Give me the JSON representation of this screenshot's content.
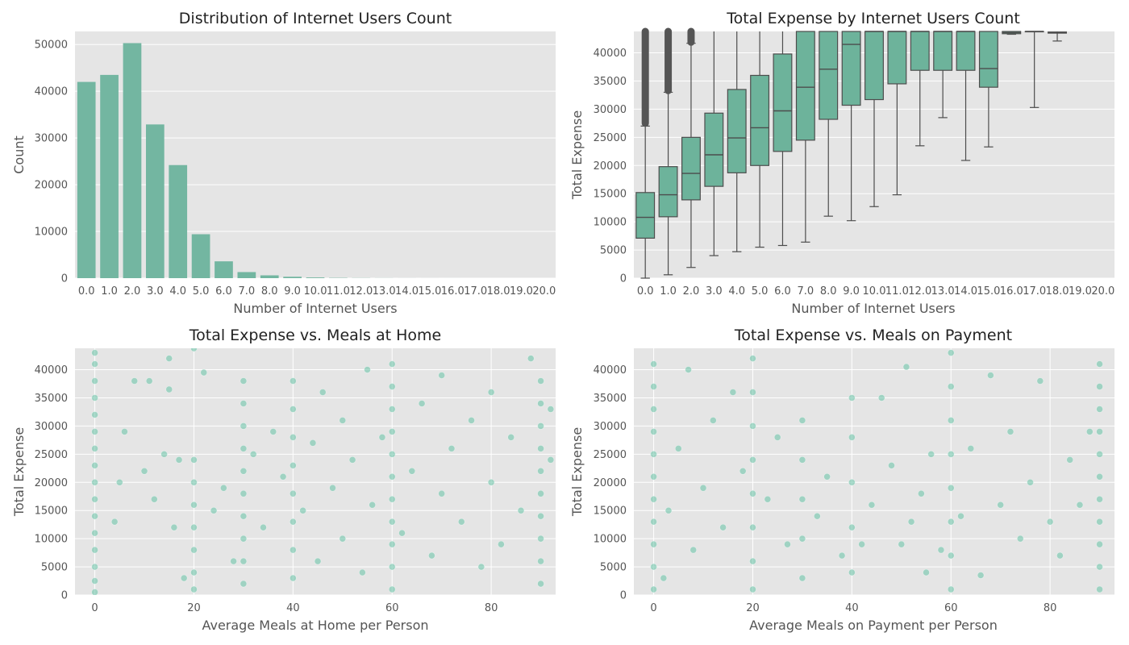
{
  "colors": {
    "face": "#e5e5e5",
    "grid": "#ffffff",
    "bar": "#73b6a1",
    "box_fill": "#6db39b",
    "box_line": "#4d4d4d",
    "flier": "#555555",
    "point": "#66c2a5",
    "text": "#555555",
    "title": "#222222"
  },
  "chart_data": [
    {
      "type": "bar",
      "title": "Distribution of Internet Users Count",
      "xlabel": "Number of Internet Users",
      "ylabel": "Count",
      "categories": [
        "0.0",
        "1.0",
        "2.0",
        "3.0",
        "4.0",
        "5.0",
        "6.0",
        "7.0",
        "8.0",
        "9.0",
        "10.0",
        "11.0",
        "12.0",
        "13.0",
        "14.0",
        "15.0",
        "16.0",
        "17.0",
        "18.0",
        "19.0",
        "20.0"
      ],
      "values": [
        42000,
        43500,
        50300,
        32900,
        24200,
        9400,
        3600,
        1300,
        600,
        300,
        150,
        60,
        30,
        15,
        8,
        4,
        2,
        1,
        1,
        0,
        1
      ],
      "ylim": [
        0,
        52800
      ],
      "yticks": [
        0,
        10000,
        20000,
        30000,
        40000,
        50000
      ],
      "ytick_labels": [
        "0",
        "10000",
        "20000",
        "30000",
        "40000",
        "50000"
      ],
      "grid": true
    },
    {
      "type": "box",
      "title": "Total Expense by Internet Users Count",
      "xlabel": "Number of Internet Users",
      "ylabel": "Total Expense",
      "categories": [
        "0.0",
        "1.0",
        "2.0",
        "3.0",
        "4.0",
        "5.0",
        "6.0",
        "7.0",
        "8.0",
        "9.0",
        "10.0",
        "11.0",
        "12.0",
        "13.0",
        "14.0",
        "15.0",
        "16.0",
        "17.0",
        "18.0",
        "19.0",
        "20.0"
      ],
      "boxes": [
        {
          "q1": 7100,
          "median": 10800,
          "q3": 15200,
          "whislo": 0,
          "whishi": 27000,
          "fliers": [
            27500,
            43800
          ]
        },
        {
          "q1": 10900,
          "median": 14800,
          "q3": 19800,
          "whislo": 600,
          "whishi": 33000,
          "fliers": [
            33300,
            43800
          ]
        },
        {
          "q1": 13900,
          "median": 18600,
          "q3": 25000,
          "whislo": 1900,
          "whishi": 41700,
          "fliers": [
            41900,
            43800
          ]
        },
        {
          "q1": 16300,
          "median": 21900,
          "q3": 29300,
          "whislo": 4000,
          "whishi": 43800,
          "fliers": []
        },
        {
          "q1": 18700,
          "median": 24900,
          "q3": 33500,
          "whislo": 4700,
          "whishi": 43800,
          "fliers": []
        },
        {
          "q1": 20000,
          "median": 26700,
          "q3": 36000,
          "whislo": 5500,
          "whishi": 43800,
          "fliers": []
        },
        {
          "q1": 22500,
          "median": 29700,
          "q3": 39800,
          "whislo": 5800,
          "whishi": 43800,
          "fliers": []
        },
        {
          "q1": 24500,
          "median": 33900,
          "q3": 43800,
          "whislo": 6400,
          "whishi": 43800,
          "fliers": []
        },
        {
          "q1": 28200,
          "median": 37100,
          "q3": 43800,
          "whislo": 11000,
          "whishi": 43800,
          "fliers": []
        },
        {
          "q1": 30700,
          "median": 41500,
          "q3": 43800,
          "whislo": 10200,
          "whishi": 43800,
          "fliers": []
        },
        {
          "q1": 31700,
          "median": 43800,
          "q3": 43800,
          "whislo": 12700,
          "whishi": 43800,
          "fliers": []
        },
        {
          "q1": 34500,
          "median": 43800,
          "q3": 43800,
          "whislo": 14800,
          "whishi": 43800,
          "fliers": []
        },
        {
          "q1": 36900,
          "median": 43800,
          "q3": 43800,
          "whislo": 23500,
          "whishi": 43800,
          "fliers": []
        },
        {
          "q1": 36900,
          "median": 43800,
          "q3": 43800,
          "whislo": 28500,
          "whishi": 43800,
          "fliers": []
        },
        {
          "q1": 36900,
          "median": 43800,
          "q3": 43800,
          "whislo": 20900,
          "whishi": 43800,
          "fliers": []
        },
        {
          "q1": 33900,
          "median": 37200,
          "q3": 43800,
          "whislo": 23300,
          "whishi": 43800,
          "fliers": []
        },
        {
          "q1": 43400,
          "median": 43600,
          "q3": 43800,
          "whislo": 43300,
          "whishi": 43800,
          "fliers": []
        },
        {
          "q1": 43800,
          "median": 43800,
          "q3": 43800,
          "whislo": 30300,
          "whishi": 43800,
          "fliers": []
        },
        {
          "q1": 43500,
          "median": 43600,
          "q3": 43700,
          "whislo": 42100,
          "whishi": 43800,
          "fliers": []
        },
        null,
        null
      ],
      "ylim": [
        0,
        43800
      ],
      "yticks": [
        0,
        5000,
        10000,
        15000,
        20000,
        25000,
        30000,
        35000,
        40000
      ],
      "ytick_labels": [
        "0",
        "5000",
        "10000",
        "15000",
        "20000",
        "25000",
        "30000",
        "35000",
        "40000"
      ],
      "grid": true
    },
    {
      "type": "scatter",
      "title": "Total Expense vs. Meals at Home",
      "xlabel": "Average Meals at Home per Person",
      "ylabel": "Total Expense",
      "xlim": [
        -4,
        93
      ],
      "ylim": [
        0,
        43800
      ],
      "xticks": [
        0,
        20,
        40,
        60,
        80
      ],
      "xtick_labels": [
        "0",
        "20",
        "40",
        "60",
        "80"
      ],
      "yticks": [
        0,
        5000,
        10000,
        15000,
        20000,
        25000,
        30000,
        35000,
        40000
      ],
      "ytick_labels": [
        "0",
        "5000",
        "10000",
        "15000",
        "20000",
        "25000",
        "30000",
        "35000",
        "40000"
      ],
      "stripes": [
        0,
        20,
        30,
        40,
        60,
        90
      ],
      "points": [
        [
          0,
          500
        ],
        [
          0,
          2500
        ],
        [
          0,
          5000
        ],
        [
          0,
          8000
        ],
        [
          0,
          11000
        ],
        [
          0,
          14000
        ],
        [
          0,
          17000
        ],
        [
          0,
          20000
        ],
        [
          0,
          23000
        ],
        [
          0,
          26000
        ],
        [
          0,
          29000
        ],
        [
          0,
          32000
        ],
        [
          0,
          35000
        ],
        [
          0,
          38000
        ],
        [
          0,
          41000
        ],
        [
          0,
          43000
        ],
        [
          4,
          13000
        ],
        [
          5,
          20000
        ],
        [
          6,
          29000
        ],
        [
          8,
          38000
        ],
        [
          10,
          22000
        ],
        [
          11,
          38000
        ],
        [
          12,
          17000
        ],
        [
          14,
          25000
        ],
        [
          15,
          36500
        ],
        [
          15,
          42000
        ],
        [
          16,
          12000
        ],
        [
          17,
          24000
        ],
        [
          18,
          3000
        ],
        [
          20,
          1000
        ],
        [
          20,
          4000
        ],
        [
          20,
          8000
        ],
        [
          20,
          12000
        ],
        [
          20,
          16000
        ],
        [
          20,
          20000
        ],
        [
          20,
          24000
        ],
        [
          20,
          43800
        ],
        [
          22,
          39500
        ],
        [
          24,
          15000
        ],
        [
          26,
          19000
        ],
        [
          28,
          6000
        ],
        [
          30,
          2000
        ],
        [
          30,
          6000
        ],
        [
          30,
          10000
        ],
        [
          30,
          14000
        ],
        [
          30,
          18000
        ],
        [
          30,
          22000
        ],
        [
          30,
          26000
        ],
        [
          30,
          30000
        ],
        [
          30,
          34000
        ],
        [
          30,
          38000
        ],
        [
          32,
          25000
        ],
        [
          34,
          12000
        ],
        [
          36,
          29000
        ],
        [
          38,
          21000
        ],
        [
          40,
          3000
        ],
        [
          40,
          8000
        ],
        [
          40,
          13000
        ],
        [
          40,
          18000
        ],
        [
          40,
          23000
        ],
        [
          40,
          28000
        ],
        [
          40,
          33000
        ],
        [
          40,
          38000
        ],
        [
          42,
          15000
        ],
        [
          44,
          27000
        ],
        [
          45,
          6000
        ],
        [
          46,
          36000
        ],
        [
          48,
          19000
        ],
        [
          50,
          10000
        ],
        [
          50,
          31000
        ],
        [
          52,
          24000
        ],
        [
          54,
          4000
        ],
        [
          55,
          40000
        ],
        [
          56,
          16000
        ],
        [
          58,
          28000
        ],
        [
          60,
          1000
        ],
        [
          60,
          5000
        ],
        [
          60,
          9000
        ],
        [
          60,
          13000
        ],
        [
          60,
          17000
        ],
        [
          60,
          21000
        ],
        [
          60,
          25000
        ],
        [
          60,
          29000
        ],
        [
          60,
          33000
        ],
        [
          60,
          37000
        ],
        [
          60,
          41000
        ],
        [
          62,
          11000
        ],
        [
          64,
          22000
        ],
        [
          66,
          34000
        ],
        [
          68,
          7000
        ],
        [
          70,
          18000
        ],
        [
          70,
          39000
        ],
        [
          72,
          26000
        ],
        [
          74,
          13000
        ],
        [
          76,
          31000
        ],
        [
          78,
          5000
        ],
        [
          80,
          20000
        ],
        [
          80,
          36000
        ],
        [
          82,
          9000
        ],
        [
          84,
          28000
        ],
        [
          86,
          15000
        ],
        [
          88,
          42000
        ],
        [
          90,
          2000
        ],
        [
          90,
          6000
        ],
        [
          90,
          10000
        ],
        [
          90,
          14000
        ],
        [
          90,
          18000
        ],
        [
          90,
          22000
        ],
        [
          90,
          26000
        ],
        [
          90,
          30000
        ],
        [
          90,
          34000
        ],
        [
          90,
          38000
        ],
        [
          92,
          24000
        ],
        [
          92,
          33000
        ]
      ],
      "grid": true
    },
    {
      "type": "scatter",
      "title": "Total Expense vs. Meals on Payment",
      "xlabel": "Average Meals on Payment per Person",
      "ylabel": "Total Expense",
      "xlim": [
        -4,
        93
      ],
      "ylim": [
        0,
        43800
      ],
      "xticks": [
        0,
        20,
        40,
        60,
        80
      ],
      "xtick_labels": [
        "0",
        "20",
        "40",
        "60",
        "80"
      ],
      "yticks": [
        0,
        5000,
        10000,
        15000,
        20000,
        25000,
        30000,
        35000,
        40000
      ],
      "ytick_labels": [
        "0",
        "5000",
        "10000",
        "15000",
        "20000",
        "25000",
        "30000",
        "35000",
        "40000"
      ],
      "stripes": [
        0,
        20,
        30,
        40,
        60,
        90
      ],
      "points": [
        [
          0,
          1000
        ],
        [
          0,
          5000
        ],
        [
          0,
          9000
        ],
        [
          0,
          13000
        ],
        [
          0,
          17000
        ],
        [
          0,
          21000
        ],
        [
          0,
          25000
        ],
        [
          0,
          29000
        ],
        [
          0,
          33000
        ],
        [
          0,
          37000
        ],
        [
          0,
          41000
        ],
        [
          2,
          3000
        ],
        [
          3,
          15000
        ],
        [
          5,
          26000
        ],
        [
          7,
          40000
        ],
        [
          8,
          8000
        ],
        [
          10,
          19000
        ],
        [
          12,
          31000
        ],
        [
          14,
          12000
        ],
        [
          16,
          36000
        ],
        [
          18,
          22000
        ],
        [
          20,
          1000
        ],
        [
          20,
          6000
        ],
        [
          20,
          12000
        ],
        [
          20,
          18000
        ],
        [
          20,
          24000
        ],
        [
          20,
          30000
        ],
        [
          20,
          36000
        ],
        [
          20,
          42000
        ],
        [
          23,
          17000
        ],
        [
          25,
          28000
        ],
        [
          27,
          9000
        ],
        [
          30,
          3000
        ],
        [
          30,
          10000
        ],
        [
          30,
          17000
        ],
        [
          30,
          24000
        ],
        [
          30,
          31000
        ],
        [
          33,
          14000
        ],
        [
          35,
          21000
        ],
        [
          38,
          7000
        ],
        [
          40,
          4000
        ],
        [
          40,
          12000
        ],
        [
          40,
          20000
        ],
        [
          40,
          28000
        ],
        [
          40,
          35000
        ],
        [
          42,
          9000
        ],
        [
          44,
          16000
        ],
        [
          46,
          35000
        ],
        [
          48,
          23000
        ],
        [
          50,
          9000
        ],
        [
          51,
          40500
        ],
        [
          52,
          13000
        ],
        [
          54,
          18000
        ],
        [
          55,
          4000
        ],
        [
          56,
          25000
        ],
        [
          58,
          8000
        ],
        [
          60,
          1000
        ],
        [
          60,
          7000
        ],
        [
          60,
          13000
        ],
        [
          60,
          19000
        ],
        [
          60,
          25000
        ],
        [
          60,
          31000
        ],
        [
          60,
          37000
        ],
        [
          60,
          43000
        ],
        [
          62,
          14000
        ],
        [
          64,
          26000
        ],
        [
          66,
          3500
        ],
        [
          68,
          39000
        ],
        [
          70,
          16000
        ],
        [
          72,
          29000
        ],
        [
          74,
          10000
        ],
        [
          76,
          20000
        ],
        [
          78,
          38000
        ],
        [
          80,
          13000
        ],
        [
          82,
          7000
        ],
        [
          84,
          24000
        ],
        [
          86,
          16000
        ],
        [
          88,
          29000
        ],
        [
          90,
          1000
        ],
        [
          90,
          5000
        ],
        [
          90,
          9000
        ],
        [
          90,
          13000
        ],
        [
          90,
          17000
        ],
        [
          90,
          21000
        ],
        [
          90,
          25000
        ],
        [
          90,
          29000
        ],
        [
          90,
          33000
        ],
        [
          90,
          37000
        ],
        [
          90,
          41000
        ]
      ],
      "grid": true
    }
  ]
}
